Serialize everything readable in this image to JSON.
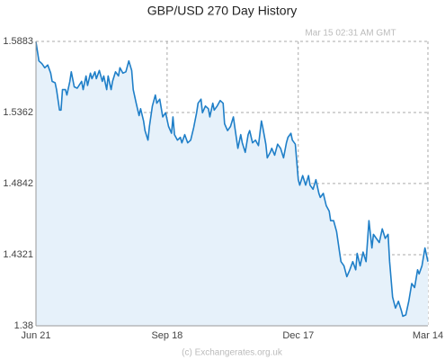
{
  "chart_data": {
    "type": "area-line",
    "title": "GBP/USD  270 Day History",
    "annotation": "Mar 15  02:31 AM GMT",
    "footer": "(c) Exchangerates.org.uk",
    "x": [
      0,
      2,
      4,
      6,
      8,
      10,
      11,
      13,
      14,
      16,
      17,
      18,
      20,
      21,
      23,
      24,
      26,
      28,
      31,
      32,
      34,
      35,
      37,
      38,
      40,
      41,
      43,
      45,
      46,
      48,
      49,
      51,
      52,
      54,
      56,
      57,
      59,
      61,
      63,
      65,
      66,
      68,
      70,
      71,
      73,
      74,
      76,
      77,
      79,
      81,
      82,
      84,
      86,
      88,
      90,
      92,
      93,
      94,
      96,
      98,
      99,
      101,
      103,
      105,
      107,
      109,
      110,
      112,
      113,
      115,
      117,
      118,
      120,
      121,
      123,
      125,
      127,
      128,
      130,
      132,
      134,
      135,
      137,
      139,
      140,
      142,
      144,
      145,
      147,
      149,
      151,
      153,
      154,
      156,
      157,
      159,
      160,
      162,
      164,
      166,
      168,
      170,
      171,
      173,
      174,
      176,
      178,
      179,
      181,
      183,
      185,
      186,
      188,
      190,
      192,
      193,
      195,
      197,
      199,
      200,
      202,
      204,
      206,
      207,
      209,
      211,
      213,
      215,
      217,
      218,
      220,
      222,
      224,
      226,
      228,
      229,
      231,
      233,
      235,
      237,
      239,
      240,
      242,
      244,
      246,
      248,
      249,
      251,
      253,
      255,
      257,
      259,
      260,
      262,
      264,
      266
    ],
    "values": [
      1.588,
      1.574,
      1.572,
      1.569,
      1.571,
      1.565,
      1.559,
      1.558,
      1.553,
      1.538,
      1.538,
      1.553,
      1.553,
      1.549,
      1.559,
      1.566,
      1.555,
      1.554,
      1.559,
      1.553,
      1.563,
      1.556,
      1.565,
      1.561,
      1.566,
      1.561,
      1.567,
      1.559,
      1.563,
      1.553,
      1.563,
      1.553,
      1.559,
      1.566,
      1.563,
      1.569,
      1.565,
      1.566,
      1.574,
      1.567,
      1.553,
      1.543,
      1.534,
      1.539,
      1.53,
      1.523,
      1.516,
      1.526,
      1.541,
      1.549,
      1.543,
      1.546,
      1.533,
      1.536,
      1.526,
      1.521,
      1.533,
      1.52,
      1.516,
      1.518,
      1.514,
      1.52,
      1.514,
      1.516,
      1.525,
      1.536,
      1.543,
      1.546,
      1.536,
      1.541,
      1.539,
      1.533,
      1.543,
      1.538,
      1.541,
      1.545,
      1.543,
      1.528,
      1.523,
      1.526,
      1.533,
      1.525,
      1.51,
      1.52,
      1.514,
      1.507,
      1.52,
      1.523,
      1.514,
      1.516,
      1.512,
      1.53,
      1.525,
      1.513,
      1.503,
      1.507,
      1.51,
      1.505,
      1.513,
      1.51,
      1.503,
      1.514,
      1.518,
      1.521,
      1.516,
      1.513,
      1.487,
      1.483,
      1.49,
      1.483,
      1.49,
      1.483,
      1.48,
      1.487,
      1.477,
      1.474,
      1.477,
      1.468,
      1.464,
      1.457,
      1.457,
      1.449,
      1.434,
      1.427,
      1.424,
      1.416,
      1.421,
      1.427,
      1.421,
      1.433,
      1.424,
      1.434,
      1.427,
      1.457,
      1.437,
      1.447,
      1.444,
      1.441,
      1.451,
      1.444,
      1.447,
      1.427,
      1.401,
      1.393,
      1.398,
      1.391,
      1.387,
      1.388,
      1.398,
      1.411,
      1.408,
      1.421,
      1.418,
      1.424,
      1.437,
      1.427
    ],
    "color": "#1f7fc8",
    "fill": "#e6f1fa",
    "xlim": [
      0,
      266
    ],
    "xticks": [
      {
        "value": 0,
        "label": "Jun 21"
      },
      {
        "value": 89,
        "label": "Sep 18"
      },
      {
        "value": 178,
        "label": "Dec 17"
      },
      {
        "value": 266,
        "label": "Mar 14"
      }
    ],
    "ylim": [
      1.38,
      1.5883
    ],
    "yticks": [
      1.38,
      1.4321,
      1.4842,
      1.5362,
      1.5883
    ],
    "grid": true
  }
}
